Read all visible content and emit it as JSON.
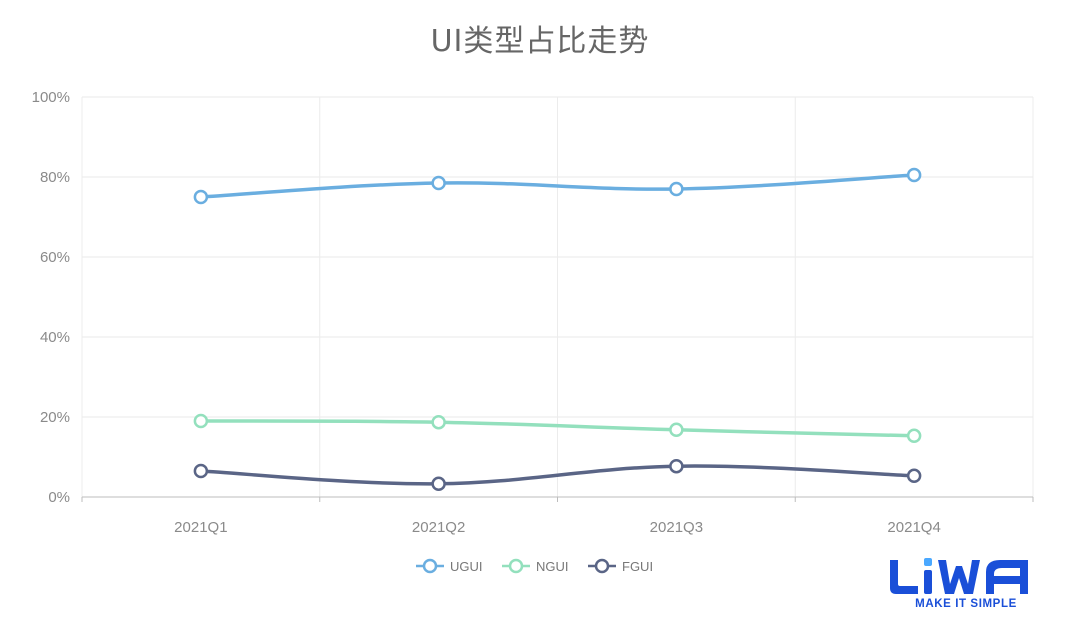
{
  "chart_data": {
    "type": "line",
    "title": "UI类型占比走势",
    "categories": [
      "2021Q1",
      "2021Q2",
      "2021Q3",
      "2021Q4"
    ],
    "y_ticks": [
      "0%",
      "20%",
      "40%",
      "60%",
      "80%",
      "100%"
    ],
    "ylim": [
      0,
      100
    ],
    "y_unit": "%",
    "grid": true,
    "legend_position": "bottom-center",
    "smooth": true,
    "series": [
      {
        "name": "UGUI",
        "values": [
          75,
          78.5,
          77,
          80.5
        ],
        "color": "#6aaee0"
      },
      {
        "name": "NGUI",
        "values": [
          19,
          18.7,
          16.8,
          15.3
        ],
        "color": "#93e0bd"
      },
      {
        "name": "FGUI",
        "values": [
          6.5,
          3.3,
          7.7,
          5.3
        ],
        "color": "#5a6586"
      }
    ]
  },
  "branding": {
    "logo_text": "LiWA",
    "tagline": "MAKE IT SIMPLE",
    "color": "#1a4fd8"
  }
}
